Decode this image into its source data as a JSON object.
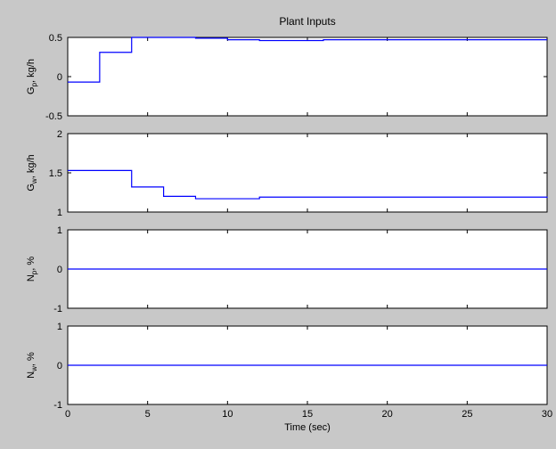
{
  "figure": {
    "title": "Plant Inputs"
  },
  "colors": {
    "background": "#c8c8c8",
    "axes": "#ffffff",
    "line": "#0000ff",
    "frame": "#000000"
  },
  "chart_data": [
    {
      "type": "line",
      "title": "Plant Inputs",
      "ylabel_main": "G",
      "ylabel_sub": "p",
      "ylabel_rest": ", kg/h",
      "xlim": [
        0,
        30
      ],
      "ylim": [
        -0.5,
        0.5
      ],
      "yticks": [
        -0.5,
        0,
        0.5
      ],
      "ytick_labels": [
        "-0.5",
        "0",
        "0.5"
      ],
      "step": true,
      "x": [
        0,
        2,
        4,
        6,
        8,
        10,
        12,
        14,
        16,
        30
      ],
      "y": [
        -0.07,
        0.31,
        0.5,
        0.5,
        0.49,
        0.47,
        0.46,
        0.46,
        0.47,
        0.47
      ],
      "grid": false
    },
    {
      "type": "line",
      "ylabel_main": "G",
      "ylabel_sub": "w",
      "ylabel_rest": ", kg/h",
      "xlim": [
        0,
        30
      ],
      "ylim": [
        1,
        2
      ],
      "yticks": [
        1,
        1.5,
        2
      ],
      "ytick_labels": [
        "1",
        "1.5",
        "2"
      ],
      "step": true,
      "x": [
        0,
        2,
        4,
        6,
        8,
        10,
        12,
        30
      ],
      "y": [
        1.53,
        1.53,
        1.32,
        1.2,
        1.17,
        1.17,
        1.19,
        1.18
      ],
      "grid": false
    },
    {
      "type": "line",
      "ylabel_main": "N",
      "ylabel_sub": "p",
      "ylabel_rest": ", %",
      "xlim": [
        0,
        30
      ],
      "ylim": [
        -1,
        1
      ],
      "yticks": [
        -1,
        0,
        1
      ],
      "ytick_labels": [
        "-1",
        "0",
        "1"
      ],
      "step": true,
      "x": [
        0,
        30
      ],
      "y": [
        0,
        0
      ],
      "grid": false
    },
    {
      "type": "line",
      "ylabel_main": "N",
      "ylabel_sub": "w",
      "ylabel_rest": ", %",
      "xlabel": "Time (sec)",
      "xlim": [
        0,
        30
      ],
      "ylim": [
        -1,
        1
      ],
      "yticks": [
        -1,
        0,
        1
      ],
      "ytick_labels": [
        "-1",
        "0",
        "1"
      ],
      "xticks": [
        0,
        5,
        10,
        15,
        20,
        25,
        30
      ],
      "xtick_labels": [
        "0",
        "5",
        "10",
        "15",
        "20",
        "25",
        "30"
      ],
      "step": true,
      "x": [
        0,
        30
      ],
      "y": [
        0,
        0
      ],
      "grid": false
    }
  ]
}
